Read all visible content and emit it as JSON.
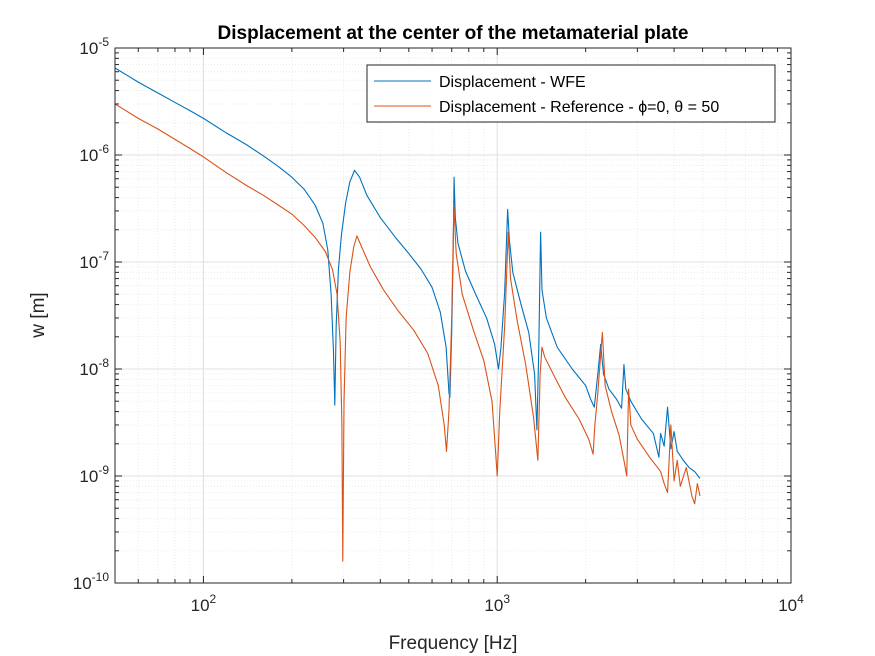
{
  "chart_data": {
    "type": "line",
    "title": "Displacement at the center of the metamaterial plate",
    "xlabel": "Frequency [Hz]",
    "ylabel": "w [m]",
    "xscale": "log",
    "yscale": "log",
    "xlim": [
      50,
      10000
    ],
    "ylim": [
      1e-10,
      1e-05
    ],
    "grid": true,
    "minor_grid": true,
    "legend_position": "top-right",
    "x_ticks": [
      {
        "value": 100,
        "base": "10",
        "exp": "2"
      },
      {
        "value": 1000,
        "base": "10",
        "exp": "3"
      },
      {
        "value": 10000,
        "base": "10",
        "exp": "4"
      }
    ],
    "y_ticks": [
      {
        "value": 1e-10,
        "base": "10",
        "exp": "-10"
      },
      {
        "value": 1e-09,
        "base": "10",
        "exp": "-9"
      },
      {
        "value": 1e-08,
        "base": "10",
        "exp": "-8"
      },
      {
        "value": 1e-07,
        "base": "10",
        "exp": "-7"
      },
      {
        "value": 1e-06,
        "base": "10",
        "exp": "-6"
      },
      {
        "value": 1e-05,
        "base": "10",
        "exp": "-5"
      }
    ],
    "series": [
      {
        "name": "Displacement - WFE",
        "color": "#0072BD",
        "points": [
          [
            50,
            6.5e-06
          ],
          [
            60,
            4.8e-06
          ],
          [
            70,
            3.8e-06
          ],
          [
            80,
            3.1e-06
          ],
          [
            90,
            2.6e-06
          ],
          [
            100,
            2.2e-06
          ],
          [
            120,
            1.6e-06
          ],
          [
            140,
            1.25e-06
          ],
          [
            160,
            9.8e-07
          ],
          [
            180,
            7.8e-07
          ],
          [
            200,
            6.2e-07
          ],
          [
            220,
            4.8e-07
          ],
          [
            240,
            3.4e-07
          ],
          [
            255,
            2.3e-07
          ],
          [
            265,
            1.3e-07
          ],
          [
            272,
            5e-08
          ],
          [
            277,
            1.5e-08
          ],
          [
            280,
            4.6e-09
          ],
          [
            283,
            2.5e-08
          ],
          [
            288,
            8.5e-08
          ],
          [
            295,
            1.8e-07
          ],
          [
            305,
            3.6e-07
          ],
          [
            315,
            5.6e-07
          ],
          [
            327,
            7.2e-07
          ],
          [
            340,
            6.2e-07
          ],
          [
            360,
            4.2e-07
          ],
          [
            400,
            2.6e-07
          ],
          [
            450,
            1.7e-07
          ],
          [
            500,
            1.2e-07
          ],
          [
            550,
            8.6e-08
          ],
          [
            600,
            5.8e-08
          ],
          [
            640,
            3.4e-08
          ],
          [
            670,
            1.6e-08
          ],
          [
            685,
            6e-09
          ],
          [
            690,
            5.4e-09
          ],
          [
            700,
            2.2e-08
          ],
          [
            708,
            1.2e-07
          ],
          [
            713,
            6.2e-07
          ],
          [
            720,
            2.6e-07
          ],
          [
            735,
            1.5e-07
          ],
          [
            780,
            8.2e-08
          ],
          [
            850,
            4.8e-08
          ],
          [
            920,
            3e-08
          ],
          [
            980,
            1.7e-08
          ],
          [
            1010,
            1e-08
          ],
          [
            1030,
            1.6e-08
          ],
          [
            1060,
            5.2e-08
          ],
          [
            1085,
            3.1e-07
          ],
          [
            1100,
            1.6e-07
          ],
          [
            1130,
            8e-08
          ],
          [
            1200,
            4.2e-08
          ],
          [
            1280,
            2.2e-08
          ],
          [
            1340,
            9e-09
          ],
          [
            1365,
            2.7e-09
          ],
          [
            1385,
            1.5e-08
          ],
          [
            1405,
            1.9e-07
          ],
          [
            1420,
            5.5e-08
          ],
          [
            1470,
            3e-08
          ],
          [
            1600,
            1.6e-08
          ],
          [
            1800,
            1e-08
          ],
          [
            2000,
            7e-09
          ],
          [
            2080,
            5.2e-09
          ],
          [
            2140,
            4.4e-09
          ],
          [
            2200,
            9e-09
          ],
          [
            2250,
            1.7e-08
          ],
          [
            2300,
            9e-09
          ],
          [
            2400,
            6.5e-09
          ],
          [
            2550,
            5.2e-09
          ],
          [
            2650,
            4.3e-09
          ],
          [
            2700,
            1.1e-08
          ],
          [
            2740,
            6.5e-09
          ],
          [
            2850,
            5e-09
          ],
          [
            3100,
            3.4e-09
          ],
          [
            3400,
            2.5e-09
          ],
          [
            3550,
            1.5e-09
          ],
          [
            3600,
            2.5e-09
          ],
          [
            3700,
            1.9e-09
          ],
          [
            3800,
            4.4e-09
          ],
          [
            3900,
            1.8e-09
          ],
          [
            4000,
            2.6e-09
          ],
          [
            4100,
            1.7e-09
          ],
          [
            4300,
            1.4e-09
          ],
          [
            4500,
            1.2e-09
          ],
          [
            4700,
            1.1e-09
          ],
          [
            4900,
            9.5e-10
          ]
        ]
      },
      {
        "name": "Displacement - Reference - ϕ=0, θ = 50",
        "color": "#D95319",
        "points": [
          [
            50,
            3e-06
          ],
          [
            60,
            2.2e-06
          ],
          [
            70,
            1.75e-06
          ],
          [
            80,
            1.4e-06
          ],
          [
            90,
            1.15e-06
          ],
          [
            100,
            9.6e-07
          ],
          [
            120,
            6.8e-07
          ],
          [
            140,
            5.2e-07
          ],
          [
            160,
            4.2e-07
          ],
          [
            180,
            3.4e-07
          ],
          [
            200,
            2.8e-07
          ],
          [
            220,
            2.2e-07
          ],
          [
            240,
            1.7e-07
          ],
          [
            260,
            1.25e-07
          ],
          [
            275,
            8.5e-08
          ],
          [
            285,
            5e-08
          ],
          [
            292,
            1.8e-08
          ],
          [
            296,
            3e-09
          ],
          [
            298,
            1.6e-10
          ],
          [
            301,
            5e-09
          ],
          [
            306,
            3e-08
          ],
          [
            315,
            8e-08
          ],
          [
            325,
            1.4e-07
          ],
          [
            333,
            1.75e-07
          ],
          [
            345,
            1.4e-07
          ],
          [
            370,
            9e-08
          ],
          [
            410,
            5.5e-08
          ],
          [
            460,
            3.5e-08
          ],
          [
            520,
            2.3e-08
          ],
          [
            580,
            1.4e-08
          ],
          [
            630,
            7e-09
          ],
          [
            660,
            3e-09
          ],
          [
            672,
            1.7e-09
          ],
          [
            685,
            4e-09
          ],
          [
            700,
            3e-08
          ],
          [
            712,
            3.4e-07
          ],
          [
            725,
            1.2e-07
          ],
          [
            760,
            5e-08
          ],
          [
            830,
            2.3e-08
          ],
          [
            900,
            1.2e-08
          ],
          [
            960,
            5e-09
          ],
          [
            990,
            1.5e-09
          ],
          [
            1000,
            1e-09
          ],
          [
            1020,
            4e-09
          ],
          [
            1060,
            2.5e-08
          ],
          [
            1090,
            1.9e-07
          ],
          [
            1110,
            7e-08
          ],
          [
            1170,
            2.8e-08
          ],
          [
            1250,
            1.1e-08
          ],
          [
            1330,
            3.5e-09
          ],
          [
            1375,
            1.4e-09
          ],
          [
            1400,
            9e-09
          ],
          [
            1420,
            1.6e-08
          ],
          [
            1450,
            1.3e-08
          ],
          [
            1550,
            9e-09
          ],
          [
            1700,
            5.5e-09
          ],
          [
            1900,
            3.4e-09
          ],
          [
            2050,
            2.2e-09
          ],
          [
            2120,
            1.6e-09
          ],
          [
            2150,
            3e-09
          ],
          [
            2200,
            6e-09
          ],
          [
            2280,
            2.2e-08
          ],
          [
            2330,
            7e-09
          ],
          [
            2450,
            4e-09
          ],
          [
            2600,
            2.4e-09
          ],
          [
            2700,
            1.4e-09
          ],
          [
            2760,
            1e-09
          ],
          [
            2800,
            6.5e-09
          ],
          [
            2850,
            3e-09
          ],
          [
            3000,
            2.2e-09
          ],
          [
            3300,
            1.5e-09
          ],
          [
            3600,
            1.1e-09
          ],
          [
            3700,
            8.5e-10
          ],
          [
            3800,
            7e-10
          ],
          [
            3900,
            3e-09
          ],
          [
            4000,
            9e-10
          ],
          [
            4100,
            1.4e-09
          ],
          [
            4200,
            8e-10
          ],
          [
            4400,
            1.2e-09
          ],
          [
            4600,
            6.5e-10
          ],
          [
            4700,
            5.5e-10
          ],
          [
            4800,
            8.5e-10
          ],
          [
            4900,
            6.5e-10
          ]
        ]
      }
    ]
  }
}
